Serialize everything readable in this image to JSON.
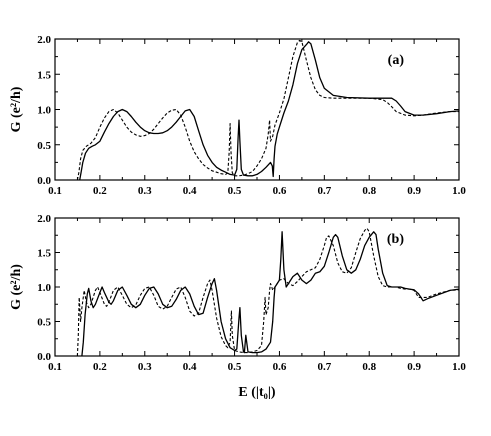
{
  "chart_data": [
    {
      "type": "line",
      "panel_label": "(a)",
      "ylabel": "G (e²/h)",
      "xlim": [
        0.1,
        1.0
      ],
      "ylim": [
        0.0,
        2.0
      ],
      "x_ticks": [
        "0.1",
        "0.2",
        "0.3",
        "0.4",
        "0.5",
        "0.6",
        "0.7",
        "0.8",
        "0.9",
        "1.0"
      ],
      "y_ticks": [
        "0.0",
        "0.5",
        "1.0",
        "1.5",
        "2.0"
      ],
      "series": [
        {
          "style": "solid",
          "x": [
            0.155,
            0.158,
            0.162,
            0.168,
            0.175,
            0.183,
            0.19,
            0.2,
            0.21,
            0.22,
            0.23,
            0.24,
            0.25,
            0.26,
            0.27,
            0.28,
            0.29,
            0.3,
            0.31,
            0.32,
            0.33,
            0.34,
            0.35,
            0.36,
            0.37,
            0.38,
            0.39,
            0.4,
            0.41,
            0.42,
            0.43,
            0.44,
            0.45,
            0.46,
            0.47,
            0.48,
            0.49,
            0.5,
            0.505,
            0.508,
            0.51,
            0.512,
            0.515,
            0.52,
            0.53,
            0.54,
            0.55,
            0.56,
            0.57,
            0.58,
            0.584,
            0.586,
            0.588,
            0.59,
            0.595,
            0.6,
            0.61,
            0.62,
            0.63,
            0.64,
            0.65,
            0.66,
            0.665,
            0.67,
            0.68,
            0.69,
            0.7,
            0.72,
            0.75,
            0.8,
            0.83,
            0.85,
            0.86,
            0.87,
            0.88,
            0.9,
            0.92,
            0.95,
            0.98,
            1.0
          ],
          "y": [
            0.0,
            0.1,
            0.25,
            0.38,
            0.45,
            0.48,
            0.5,
            0.55,
            0.68,
            0.8,
            0.9,
            0.97,
            1.0,
            0.97,
            0.9,
            0.82,
            0.75,
            0.7,
            0.67,
            0.66,
            0.66,
            0.67,
            0.7,
            0.75,
            0.82,
            0.9,
            0.98,
            1.0,
            0.9,
            0.7,
            0.5,
            0.35,
            0.25,
            0.18,
            0.14,
            0.11,
            0.08,
            0.07,
            0.15,
            0.6,
            0.85,
            0.55,
            0.15,
            0.07,
            0.06,
            0.06,
            0.08,
            0.12,
            0.18,
            0.25,
            0.2,
            0.05,
            0.3,
            0.48,
            0.65,
            0.75,
            0.95,
            1.12,
            1.35,
            1.65,
            1.85,
            1.92,
            1.96,
            1.93,
            1.7,
            1.45,
            1.3,
            1.2,
            1.17,
            1.16,
            1.16,
            1.16,
            1.12,
            1.05,
            0.97,
            0.92,
            0.92,
            0.94,
            0.97,
            0.98
          ]
        },
        {
          "style": "dashed",
          "x": [
            0.15,
            0.153,
            0.157,
            0.162,
            0.17,
            0.18,
            0.19,
            0.2,
            0.21,
            0.22,
            0.23,
            0.24,
            0.25,
            0.26,
            0.27,
            0.28,
            0.29,
            0.3,
            0.31,
            0.32,
            0.33,
            0.34,
            0.35,
            0.36,
            0.37,
            0.38,
            0.39,
            0.4,
            0.41,
            0.42,
            0.43,
            0.44,
            0.45,
            0.46,
            0.47,
            0.48,
            0.485,
            0.488,
            0.49,
            0.492,
            0.495,
            0.5,
            0.51,
            0.52,
            0.53,
            0.54,
            0.55,
            0.56,
            0.57,
            0.575,
            0.578,
            0.58,
            0.585,
            0.59,
            0.6,
            0.61,
            0.62,
            0.63,
            0.64,
            0.645,
            0.65,
            0.66,
            0.67,
            0.68,
            0.69,
            0.7,
            0.72,
            0.75,
            0.8,
            0.83,
            0.84,
            0.85,
            0.86,
            0.88,
            0.9,
            0.92,
            0.95,
            0.98,
            1.0
          ],
          "y": [
            0.0,
            0.1,
            0.3,
            0.42,
            0.48,
            0.52,
            0.6,
            0.75,
            0.88,
            0.97,
            1.0,
            0.95,
            0.85,
            0.75,
            0.68,
            0.64,
            0.62,
            0.63,
            0.66,
            0.72,
            0.8,
            0.88,
            0.95,
            0.99,
            1.0,
            0.92,
            0.75,
            0.55,
            0.4,
            0.3,
            0.22,
            0.17,
            0.13,
            0.11,
            0.09,
            0.08,
            0.1,
            0.4,
            0.8,
            0.4,
            0.1,
            0.06,
            0.06,
            0.07,
            0.09,
            0.12,
            0.2,
            0.3,
            0.45,
            0.65,
            0.85,
            0.55,
            0.62,
            0.78,
            0.95,
            1.15,
            1.45,
            1.75,
            1.95,
            1.98,
            1.96,
            1.7,
            1.45,
            1.28,
            1.2,
            1.17,
            1.16,
            1.16,
            1.16,
            1.14,
            1.1,
            1.04,
            0.97,
            0.92,
            0.91,
            0.92,
            0.95,
            0.97,
            0.97
          ]
        }
      ]
    },
    {
      "type": "line",
      "panel_label": "(b)",
      "ylabel": "G (e²/h)",
      "xlabel": "E (|t₀|)",
      "xlim": [
        0.1,
        1.0
      ],
      "ylim": [
        0.0,
        2.0
      ],
      "x_ticks": [
        "0.1",
        "0.2",
        "0.3",
        "0.4",
        "0.5",
        "0.6",
        "0.7",
        "0.8",
        "0.9",
        "1.0"
      ],
      "y_ticks": [
        "0.0",
        "0.5",
        "1.0",
        "1.5",
        "2.0"
      ],
      "series": [
        {
          "style": "solid",
          "x": [
            0.16,
            0.163,
            0.167,
            0.172,
            0.175,
            0.18,
            0.185,
            0.19,
            0.2,
            0.205,
            0.21,
            0.22,
            0.225,
            0.23,
            0.24,
            0.25,
            0.26,
            0.27,
            0.28,
            0.29,
            0.3,
            0.31,
            0.32,
            0.33,
            0.34,
            0.35,
            0.36,
            0.37,
            0.38,
            0.39,
            0.4,
            0.41,
            0.42,
            0.43,
            0.44,
            0.45,
            0.455,
            0.46,
            0.47,
            0.48,
            0.49,
            0.5,
            0.505,
            0.51,
            0.512,
            0.515,
            0.52,
            0.522,
            0.525,
            0.53,
            0.54,
            0.55,
            0.56,
            0.57,
            0.58,
            0.585,
            0.588,
            0.59,
            0.595,
            0.6,
            0.603,
            0.606,
            0.61,
            0.615,
            0.62,
            0.63,
            0.64,
            0.65,
            0.66,
            0.67,
            0.68,
            0.69,
            0.7,
            0.71,
            0.72,
            0.725,
            0.73,
            0.74,
            0.75,
            0.76,
            0.77,
            0.78,
            0.79,
            0.8,
            0.81,
            0.815,
            0.82,
            0.83,
            0.84,
            0.85,
            0.86,
            0.87,
            0.88,
            0.89,
            0.9,
            0.91,
            0.92,
            0.93,
            0.95,
            0.98,
            1.0
          ],
          "y": [
            0.0,
            0.2,
            0.6,
            0.9,
            0.98,
            0.8,
            0.7,
            0.75,
            0.92,
            1.0,
            0.92,
            0.78,
            0.75,
            0.8,
            0.95,
            1.0,
            0.88,
            0.75,
            0.7,
            0.75,
            0.88,
            0.98,
            1.0,
            0.9,
            0.75,
            0.7,
            0.72,
            0.82,
            0.95,
            1.0,
            0.9,
            0.72,
            0.6,
            0.62,
            0.85,
            1.05,
            1.12,
            0.95,
            0.5,
            0.25,
            0.12,
            0.08,
            0.1,
            0.55,
            0.7,
            0.3,
            0.06,
            0.05,
            0.3,
            0.06,
            0.05,
            0.05,
            0.06,
            0.1,
            0.2,
            0.5,
            0.85,
            1.0,
            1.05,
            1.1,
            1.4,
            1.8,
            1.25,
            1.0,
            1.05,
            1.15,
            1.2,
            1.1,
            1.05,
            1.1,
            1.2,
            1.22,
            1.3,
            1.5,
            1.72,
            1.76,
            1.72,
            1.45,
            1.25,
            1.2,
            1.25,
            1.4,
            1.6,
            1.72,
            1.8,
            1.76,
            1.55,
            1.2,
            1.02,
            1.0,
            1.0,
            1.0,
            0.98,
            0.97,
            0.96,
            0.9,
            0.8,
            0.83,
            0.88,
            0.95,
            0.97
          ]
        },
        {
          "style": "dashed",
          "x": [
            0.15,
            0.152,
            0.154,
            0.157,
            0.16,
            0.165,
            0.17,
            0.175,
            0.18,
            0.19,
            0.195,
            0.2,
            0.21,
            0.215,
            0.22,
            0.23,
            0.24,
            0.25,
            0.26,
            0.27,
            0.28,
            0.29,
            0.3,
            0.31,
            0.32,
            0.33,
            0.34,
            0.35,
            0.36,
            0.37,
            0.38,
            0.39,
            0.4,
            0.41,
            0.42,
            0.43,
            0.44,
            0.445,
            0.45,
            0.46,
            0.47,
            0.48,
            0.485,
            0.49,
            0.493,
            0.495,
            0.5,
            0.51,
            0.52,
            0.53,
            0.54,
            0.55,
            0.56,
            0.565,
            0.568,
            0.57,
            0.575,
            0.578,
            0.58,
            0.583,
            0.585,
            0.59,
            0.6,
            0.61,
            0.62,
            0.63,
            0.64,
            0.65,
            0.66,
            0.67,
            0.68,
            0.69,
            0.7,
            0.705,
            0.71,
            0.72,
            0.73,
            0.74,
            0.75,
            0.76,
            0.77,
            0.78,
            0.79,
            0.795,
            0.8,
            0.81,
            0.82,
            0.83,
            0.84,
            0.85,
            0.86,
            0.87,
            0.88,
            0.89,
            0.9,
            0.91,
            0.93,
            0.95,
            0.98,
            1.0
          ],
          "y": [
            0.0,
            0.3,
            0.85,
            0.5,
            0.7,
            0.95,
            0.78,
            0.7,
            0.75,
            0.95,
            1.0,
            0.92,
            0.75,
            0.72,
            0.78,
            0.95,
            1.0,
            0.88,
            0.75,
            0.7,
            0.74,
            0.88,
            0.98,
            1.0,
            0.88,
            0.72,
            0.68,
            0.72,
            0.85,
            0.97,
            1.0,
            0.85,
            0.65,
            0.58,
            0.62,
            0.85,
            1.05,
            1.1,
            0.95,
            0.55,
            0.28,
            0.15,
            0.12,
            0.2,
            0.65,
            0.3,
            0.08,
            0.06,
            0.05,
            0.05,
            0.06,
            0.08,
            0.15,
            0.5,
            0.85,
            0.6,
            0.7,
            0.95,
            1.05,
            1.0,
            0.95,
            1.0,
            1.1,
            1.12,
            1.05,
            1.02,
            1.08,
            1.15,
            1.22,
            1.25,
            1.28,
            1.4,
            1.6,
            1.72,
            1.74,
            1.6,
            1.35,
            1.22,
            1.2,
            1.28,
            1.5,
            1.7,
            1.82,
            1.85,
            1.8,
            1.45,
            1.15,
            1.02,
            1.0,
            1.0,
            1.0,
            0.98,
            0.97,
            0.97,
            0.95,
            0.85,
            0.85,
            0.9,
            0.95,
            0.96
          ]
        }
      ]
    }
  ]
}
